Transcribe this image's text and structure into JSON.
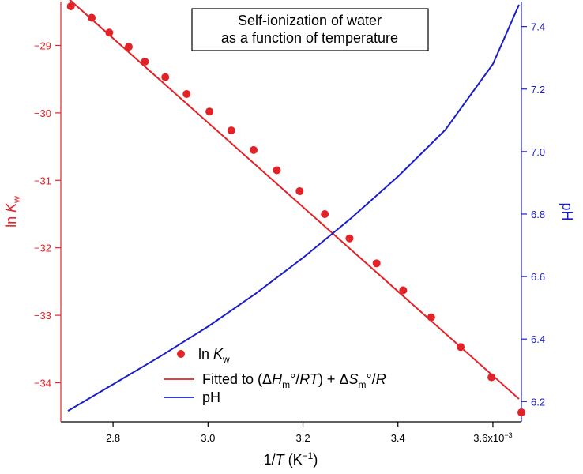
{
  "chart_data": {
    "type": "scatter+line",
    "title": [
      "Self-ionization of water",
      "as a function of temperature"
    ],
    "x_axis": {
      "label_prefix": "1/",
      "label_var": "T",
      "label_unit": " (K",
      "label_sup": "−1",
      "label_close": ")",
      "range": [
        0.00269,
        0.00366
      ],
      "ticks": [
        {
          "value": 0.0028,
          "label": "2.8"
        },
        {
          "value": 0.003,
          "label": "3.0"
        },
        {
          "value": 0.0032,
          "label": "3.2"
        },
        {
          "value": 0.0034,
          "label": "3.4"
        },
        {
          "value": 0.0036,
          "label": "3.6x10",
          "sup": "−3"
        }
      ]
    },
    "y_left": {
      "label_prefix": "ln ",
      "label_var": "K",
      "label_sub": "w",
      "range": [
        -34.58,
        -28.35
      ],
      "ticks": [
        -29,
        -30,
        -31,
        -32,
        -33,
        -34
      ],
      "tick_labels": [
        "−29",
        "−30",
        "−31",
        "−32",
        "−33",
        "−34"
      ],
      "color": "#e32228"
    },
    "y_right": {
      "label": "pH",
      "range": [
        6.135,
        7.48
      ],
      "ticks": [
        6.2,
        6.4,
        6.6,
        6.8,
        7.0,
        7.2,
        7.4
      ],
      "tick_labels": [
        "6.2",
        "6.4",
        "6.6",
        "6.8",
        "7.0",
        "7.2",
        "7.4"
      ],
      "color": "#1a1ec8"
    },
    "series": [
      {
        "name_prefix": "ln ",
        "name_var": "K",
        "name_sub": "w",
        "kind": "scatter",
        "axis": "left",
        "color": "#e32228",
        "x": [
          0.002711,
          0.002755,
          0.002792,
          0.002833,
          0.002867,
          0.00291,
          0.002955,
          0.003003,
          0.003049,
          0.003096,
          0.003145,
          0.003193,
          0.003246,
          0.003298,
          0.003355,
          0.003411,
          0.00347,
          0.003532,
          0.003597,
          0.00366
        ],
        "y": [
          -28.42,
          -28.59,
          -28.81,
          -29.02,
          -29.24,
          -29.47,
          -29.72,
          -29.98,
          -30.26,
          -30.55,
          -30.85,
          -31.16,
          -31.5,
          -31.86,
          -32.23,
          -32.63,
          -33.03,
          -33.47,
          -33.92,
          -34.44
        ]
      },
      {
        "name": "Fitted to (ΔHm°/RT) + ΔSm°/R",
        "name_parts": [
          {
            "t": "Fitted to (Δ"
          },
          {
            "t": "H",
            "i": true
          },
          {
            "t": "m",
            "sub": true
          },
          {
            "t": "°/"
          },
          {
            "t": "RT",
            "i": true
          },
          {
            "t": ") + Δ"
          },
          {
            "t": "S",
            "i": true
          },
          {
            "t": "m",
            "sub": true
          },
          {
            "t": "°/"
          },
          {
            "t": "R",
            "i": true
          }
        ],
        "kind": "line",
        "axis": "left",
        "color": "#e32228",
        "x": [
          0.002705,
          0.003655
        ],
        "y": [
          -28.3,
          -34.24
        ]
      },
      {
        "name": "pH",
        "kind": "line",
        "axis": "right",
        "color": "#1a1ec8",
        "x": [
          0.002705,
          0.0028,
          0.0029,
          0.003,
          0.0031,
          0.0032,
          0.0033,
          0.0034,
          0.0035,
          0.0036,
          0.003655
        ],
        "y": [
          6.17,
          6.255,
          6.345,
          6.44,
          6.545,
          6.66,
          6.785,
          6.92,
          7.07,
          7.28,
          7.47
        ]
      }
    ],
    "legend": {
      "position": "bottom-left"
    },
    "grid": false
  }
}
